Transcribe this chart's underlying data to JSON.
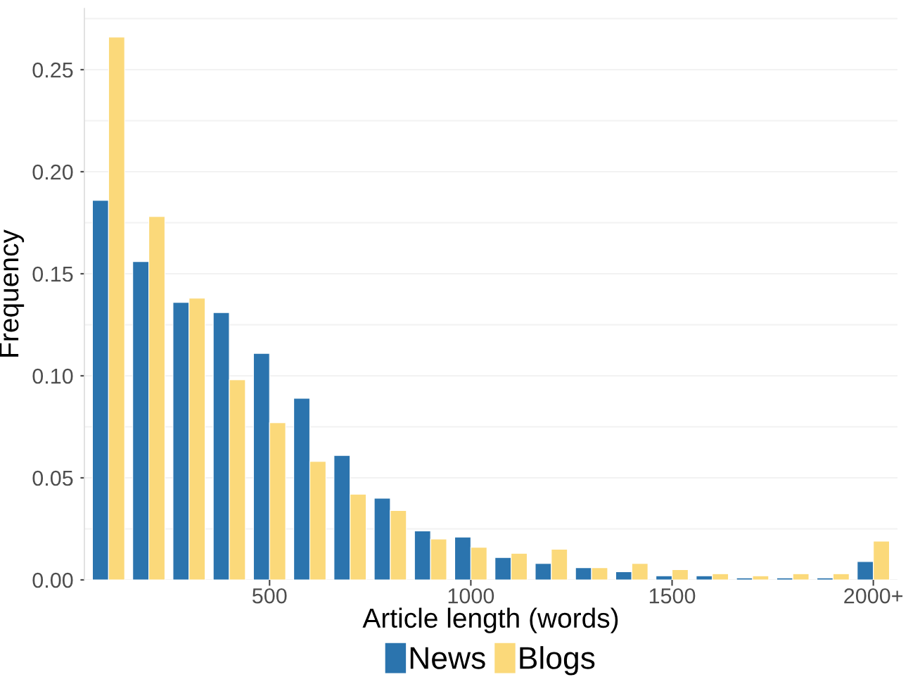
{
  "chart_data": {
    "type": "bar",
    "xlabel": "Article length (words)",
    "ylabel": "Frequency",
    "categories": [
      null,
      null,
      null,
      null,
      "500",
      null,
      null,
      null,
      null,
      "1000",
      null,
      null,
      null,
      null,
      "1500",
      null,
      null,
      null,
      null,
      "2000+"
    ],
    "series": [
      {
        "name": "News",
        "color": "#2b74ae",
        "values": [
          0.186,
          0.156,
          0.136,
          0.131,
          0.111,
          0.089,
          0.061,
          0.04,
          0.024,
          0.021,
          0.011,
          0.008,
          0.006,
          0.004,
          0.002,
          0.002,
          0.001,
          0.001,
          0.001,
          0.009
        ]
      },
      {
        "name": "Blogs",
        "color": "#fbd97a",
        "values": [
          0.266,
          0.178,
          0.138,
          0.098,
          0.077,
          0.058,
          0.042,
          0.034,
          0.02,
          0.016,
          0.013,
          0.015,
          0.006,
          0.008,
          0.005,
          0.003,
          0.002,
          0.003,
          0.003,
          0.019
        ]
      }
    ],
    "ylim": [
      0,
      0.28
    ],
    "yticks": [
      {
        "value": 0,
        "label": "0.00"
      },
      {
        "value": 0.05,
        "label": "0.05"
      },
      {
        "value": 0.1,
        "label": "0.10"
      },
      {
        "value": 0.15,
        "label": "0.15"
      },
      {
        "value": 0.2,
        "label": "0.20"
      },
      {
        "value": 0.25,
        "label": "0.25"
      }
    ],
    "grid": "y",
    "legend": "bottom"
  }
}
